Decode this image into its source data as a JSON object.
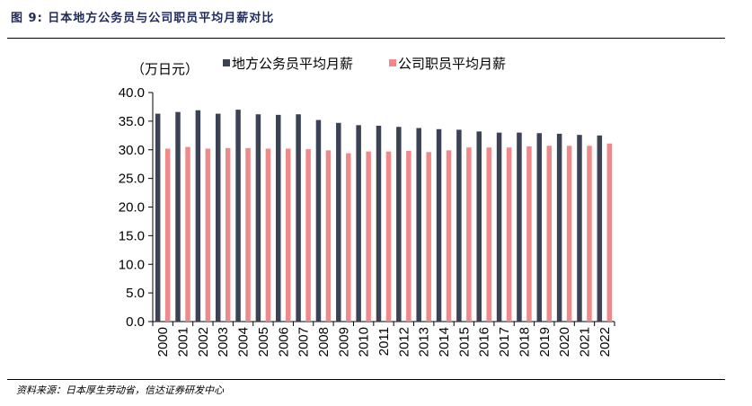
{
  "header": {
    "title": "图 9: 日本地方公务员与公司职员平均月薪对比"
  },
  "footer": {
    "source": "资料来源：日本厚生劳动省，信达证券研发中心"
  },
  "chart_data": {
    "type": "bar",
    "title": "",
    "unit_label": "（万日元）",
    "xlabel": "",
    "ylabel": "",
    "ylim": [
      0,
      40
    ],
    "yticks": [
      "0.0",
      "5.0",
      "10.0",
      "15.0",
      "20.0",
      "25.0",
      "30.0",
      "35.0",
      "40.0"
    ],
    "grid": false,
    "legend_position": "top",
    "categories": [
      "2000",
      "2001",
      "2002",
      "2003",
      "2004",
      "2005",
      "2006",
      "2007",
      "2008",
      "2009",
      "2010",
      "2011",
      "2012",
      "2013",
      "2014",
      "2015",
      "2016",
      "2017",
      "2018",
      "2019",
      "2020",
      "2021",
      "2022"
    ],
    "series": [
      {
        "name": "地方公务员平均月薪",
        "color": "#3b4256",
        "values": [
          36.3,
          36.6,
          36.9,
          36.3,
          37.0,
          36.2,
          36.1,
          36.2,
          35.2,
          34.7,
          34.3,
          34.2,
          34.0,
          33.8,
          33.6,
          33.5,
          33.2,
          33.0,
          33.0,
          32.9,
          32.8,
          32.6,
          32.5
        ]
      },
      {
        "name": "公司职员平均月薪",
        "color": "#f08a8a",
        "values": [
          30.2,
          30.5,
          30.2,
          30.3,
          30.3,
          30.2,
          30.2,
          30.1,
          29.9,
          29.4,
          29.7,
          29.7,
          29.8,
          29.6,
          29.9,
          30.4,
          30.4,
          30.4,
          30.6,
          30.7,
          30.7,
          30.7,
          31.1
        ]
      }
    ]
  }
}
